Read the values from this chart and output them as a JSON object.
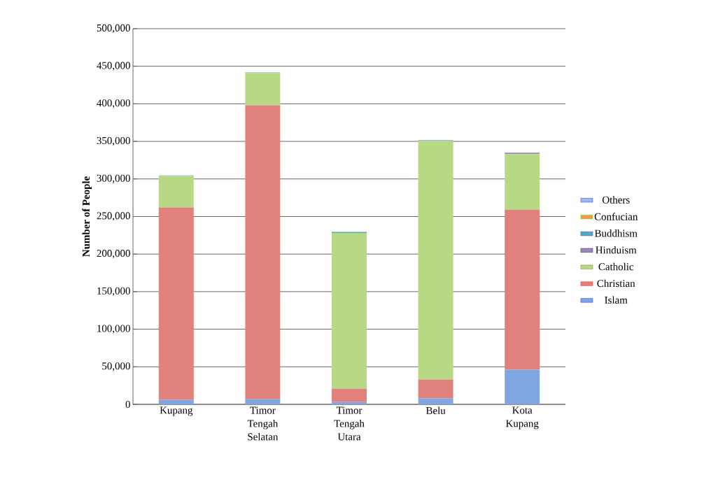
{
  "chart_data": {
    "type": "bar",
    "stacked": true,
    "ylabel": "Number of People",
    "categories": [
      "Kupang",
      "Timor Tengah Selatan",
      "Timor Tengah Utara",
      "Belu",
      "Kota Kupang"
    ],
    "series": [
      {
        "name": "Islam",
        "color": "#7fa6e0",
        "values": [
          6000,
          7000,
          3000,
          8000,
          46000
        ]
      },
      {
        "name": "Christian",
        "color": "#e0817b",
        "values": [
          256000,
          391000,
          18000,
          25000,
          213000
        ]
      },
      {
        "name": "Catholic",
        "color": "#b7d983",
        "values": [
          42000,
          43000,
          207000,
          318000,
          74000
        ]
      },
      {
        "name": "Hinduism",
        "color": "#9d86c0",
        "values": [
          null,
          null,
          null,
          null,
          2000
        ]
      },
      {
        "name": "Buddhism",
        "color": "#4bacc6",
        "values": [
          null,
          null,
          1500,
          null,
          null
        ]
      },
      {
        "name": "Confucian",
        "color": "#f79646",
        "values": [
          0,
          0,
          0,
          0,
          0
        ]
      },
      {
        "name": "Others",
        "color": "#9dbbe8",
        "values": [
          1000,
          1000,
          null,
          1000,
          null
        ]
      }
    ],
    "ylim": [
      0,
      500000
    ],
    "yticks": [
      {
        "value": 0,
        "label": "0"
      },
      {
        "value": 50000,
        "label": "50,000"
      },
      {
        "value": 100000,
        "label": "100,000"
      },
      {
        "value": 150000,
        "label": "150,000"
      },
      {
        "value": 200000,
        "label": "200,000"
      },
      {
        "value": 250000,
        "label": "250,000"
      },
      {
        "value": 300000,
        "label": "300,000"
      },
      {
        "value": 350000,
        "label": "350,000"
      },
      {
        "value": 400000,
        "label": "400,000"
      },
      {
        "value": 450000,
        "label": "450,000"
      },
      {
        "value": 500000,
        "label": "500,000"
      }
    ],
    "grid": "y",
    "legend": "right"
  }
}
